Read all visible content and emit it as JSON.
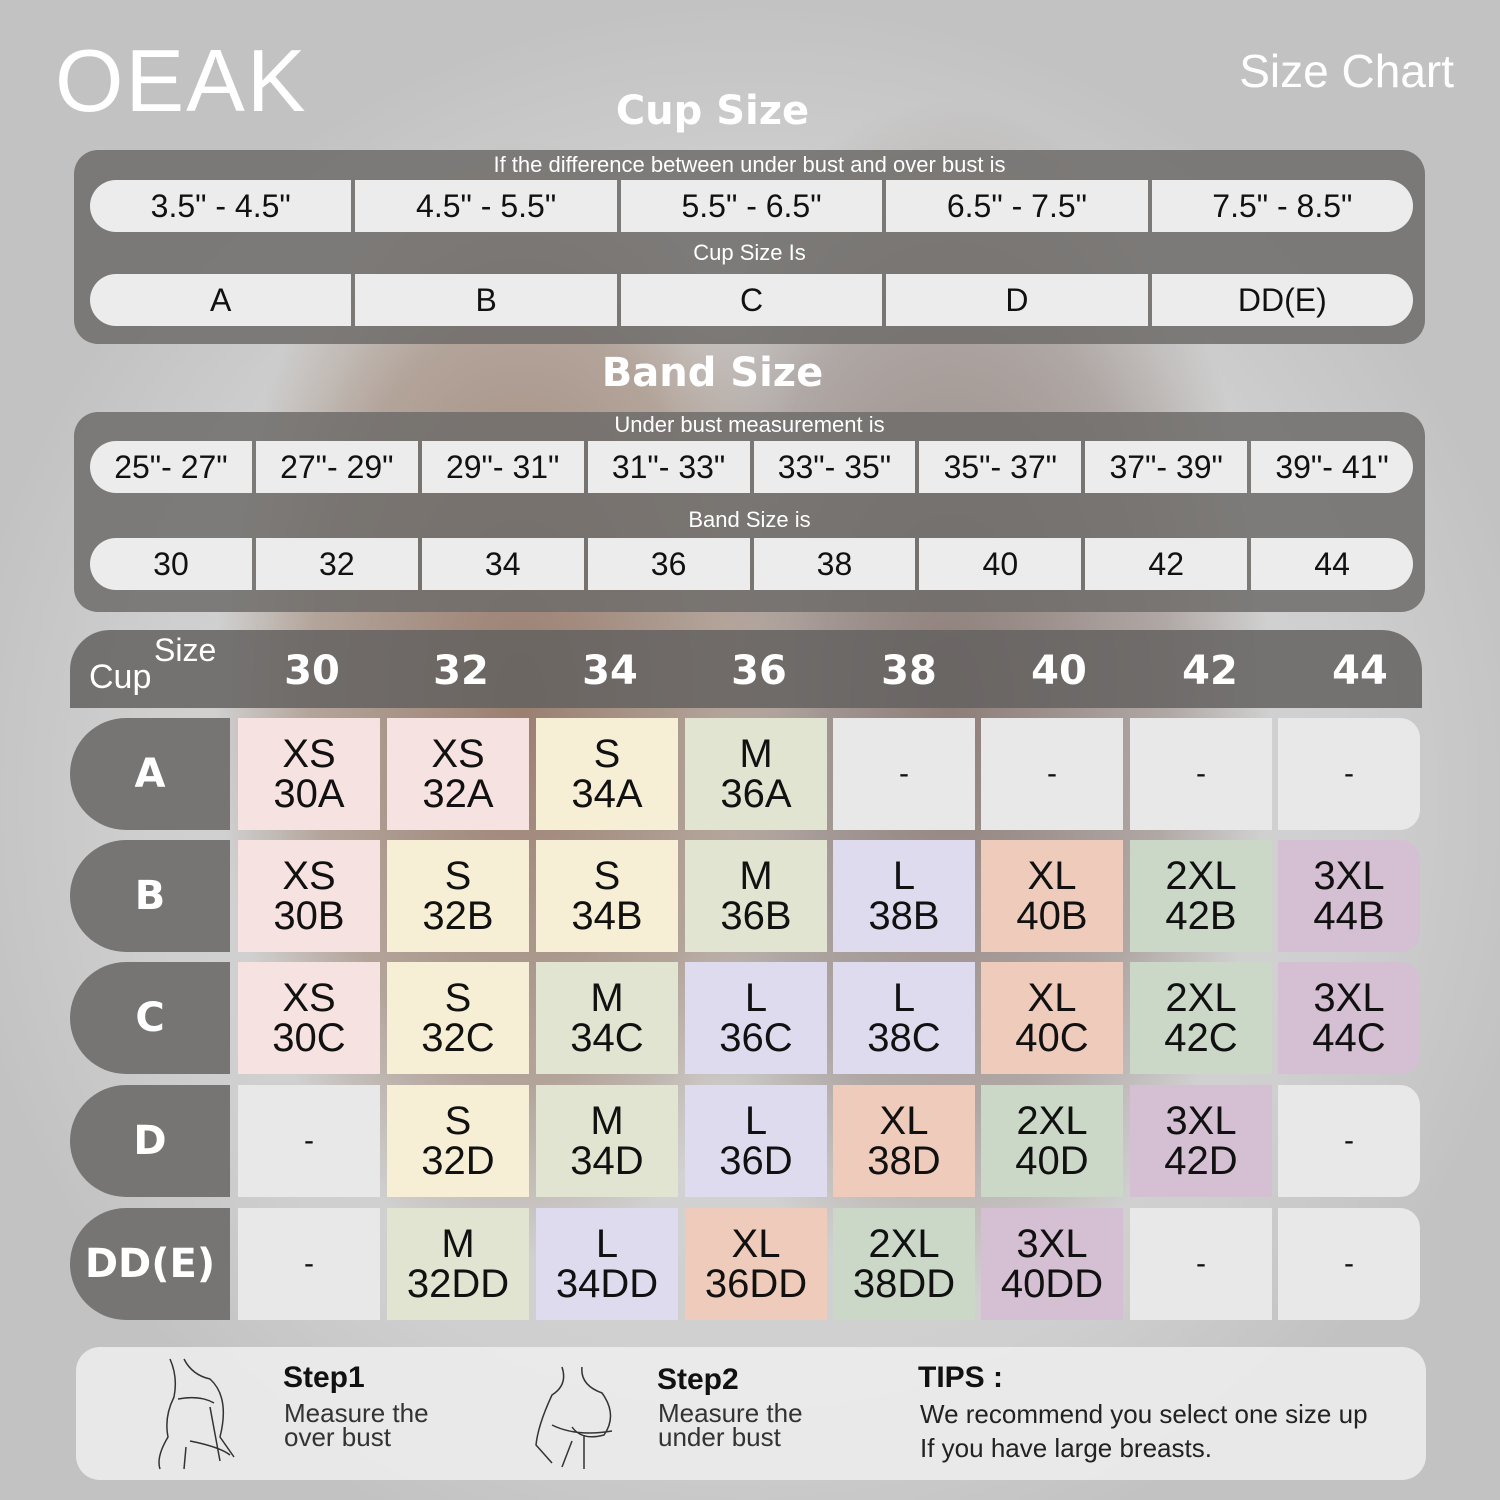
{
  "brand": "OEAK",
  "title": "Size Chart",
  "cup_section": {
    "heading": "Cup Size",
    "diff_label": "If the  difference between under bust and over bust is",
    "ranges": [
      "3.5\" -  4.5\"",
      "4.5\" -  5.5\"",
      "5.5\" -  6.5\"",
      "6.5\" -  7.5\"",
      "7.5\" -  8.5\""
    ],
    "cup_label": "Cup Size Is",
    "cups": [
      "A",
      "B",
      "C",
      "D",
      "DD(E)"
    ]
  },
  "band_section": {
    "heading": "Band Size",
    "under_label": "Under bust measurement is",
    "ranges": [
      "25\"- 27\"",
      "27\"- 29\"",
      "29\"- 31\"",
      "31\"- 33\"",
      "33\"- 35\"",
      "35\"- 37\"",
      "37\"- 39\"",
      "39\"- 41\""
    ],
    "band_label": "Band Size is",
    "bands": [
      "30",
      "32",
      "34",
      "36",
      "38",
      "40",
      "42",
      "44"
    ]
  },
  "table": {
    "size_label": "Size",
    "cup_label": "Cup",
    "columns": [
      "30",
      "32",
      "34",
      "36",
      "38",
      "40",
      "42",
      "44"
    ],
    "rows": [
      {
        "cup": "A",
        "cells": [
          [
            "XS",
            "30A"
          ],
          [
            "XS",
            "32A"
          ],
          [
            "S",
            "34A"
          ],
          [
            "M",
            "36A"
          ],
          [
            "-"
          ],
          [
            "-"
          ],
          [
            "-"
          ],
          [
            "-"
          ]
        ]
      },
      {
        "cup": "B",
        "cells": [
          [
            "XS",
            "30B"
          ],
          [
            "S",
            "32B"
          ],
          [
            "S",
            "34B"
          ],
          [
            "M",
            "36B"
          ],
          [
            "L",
            "38B"
          ],
          [
            "XL",
            "40B"
          ],
          [
            "2XL",
            "42B"
          ],
          [
            "3XL",
            "44B"
          ]
        ]
      },
      {
        "cup": "C",
        "cells": [
          [
            "XS",
            "30C"
          ],
          [
            "S",
            "32C"
          ],
          [
            "M",
            "34C"
          ],
          [
            "L",
            "36C"
          ],
          [
            "L",
            "38C"
          ],
          [
            "XL",
            "40C"
          ],
          [
            "2XL",
            "42C"
          ],
          [
            "3XL",
            "44C"
          ]
        ]
      },
      {
        "cup": "D",
        "cells": [
          [
            "-"
          ],
          [
            "S",
            "32D"
          ],
          [
            "M",
            "34D"
          ],
          [
            "L",
            "36D"
          ],
          [
            "XL",
            "38D"
          ],
          [
            "2XL",
            "40D"
          ],
          [
            "3XL",
            "42D"
          ],
          [
            "-"
          ]
        ]
      },
      {
        "cup": "DD(E)",
        "cells": [
          [
            "-"
          ],
          [
            "M",
            "32DD"
          ],
          [
            "L",
            "34DD"
          ],
          [
            "XL",
            "36DD"
          ],
          [
            "2XL",
            "38DD"
          ],
          [
            "3XL",
            "40DD"
          ],
          [
            "-"
          ],
          [
            "-"
          ]
        ]
      }
    ]
  },
  "size_colors": {
    "XS": "#f6e2e1",
    "S": "#f6efd6",
    "M": "#e0e4d0",
    "L": "#dedbef",
    "XL": "#efcbbb",
    "2XL": "#cbd8c8",
    "3XL": "#d5bfd3",
    "-": "#e9e8e8"
  },
  "steps": [
    {
      "title": "Step1",
      "text1": "Measure the",
      "text2": "over bust",
      "icon": "over-bust-measure-illustration"
    },
    {
      "title": "Step2",
      "text1": "Measure the",
      "text2": "under bust",
      "icon": "under-bust-measure-illustration"
    }
  ],
  "tips": {
    "title": "TIPS :",
    "line1": "We recommend you select one size up",
    "line2": "If you have large breasts."
  }
}
